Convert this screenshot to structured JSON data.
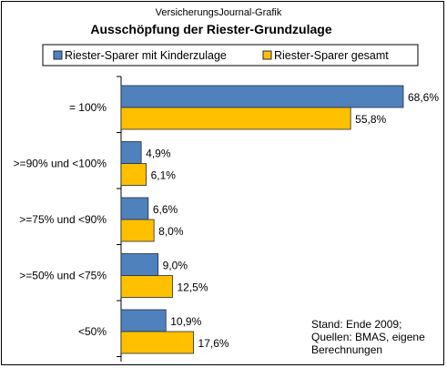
{
  "header": {
    "source": "VersicherungsJournal-Grafik",
    "title": "Ausschöpfung  der Riester-Grundzulage"
  },
  "note": {
    "lines": [
      "Stand: Ende 2009;",
      "Quellen: BMAS,  eigene",
      "Berechnungen"
    ]
  },
  "colors": {
    "series1": "#4f81bd",
    "series2": "#ffc000",
    "bar_stroke": "#1f2d3d"
  },
  "chart_data": {
    "type": "bar",
    "orientation": "horizontal",
    "title": "Ausschöpfung  der Riester-Grundzulage",
    "categories": [
      "= 100%",
      ">=90% und <100%",
      ">=75% und <90%",
      ">=50% und <75%",
      "<50%"
    ],
    "series": [
      {
        "name": "Riester-Sparer mit Kinderzulage",
        "values": [
          68.6,
          4.9,
          6.6,
          9.0,
          10.9
        ],
        "labels": [
          "68,6%",
          "4,9%",
          "6,6%",
          "9,0%",
          "10,9%"
        ]
      },
      {
        "name": "Riester-Sparer gesamt",
        "values": [
          55.8,
          6.1,
          8.0,
          12.5,
          17.6
        ],
        "labels": [
          "55,8%",
          "6,1%",
          "8,0%",
          "12,5%",
          "17,6%"
        ]
      }
    ],
    "xlim": [
      0,
      70
    ],
    "grid": false,
    "legend_position": "top"
  }
}
